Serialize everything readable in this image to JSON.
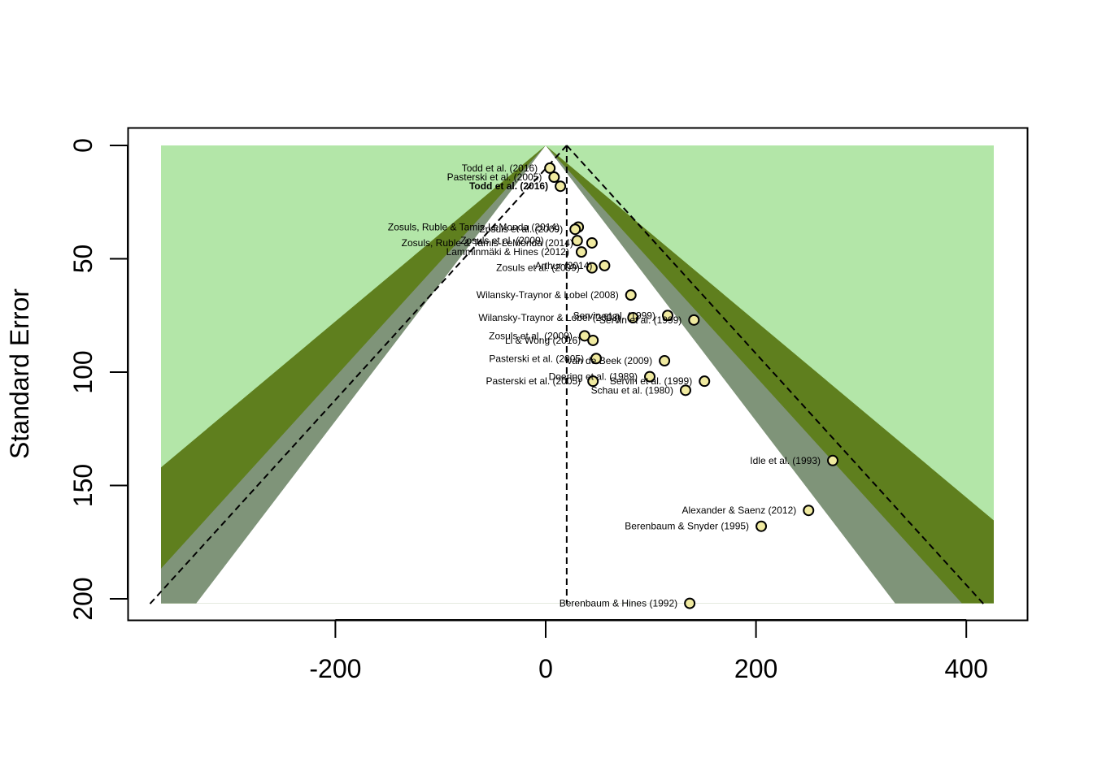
{
  "chart_data": {
    "type": "scatter",
    "subtype": "contour-enhanced funnel plot",
    "xlabel": "",
    "ylabel": "Standard Error",
    "xlim": [
      -395,
      460
    ],
    "ylim": [
      0,
      202
    ],
    "y_reversed": true,
    "x_ticks": [
      -200,
      0,
      200,
      400
    ],
    "x_tick_labels": [
      "-200",
      "0",
      "200",
      "400"
    ],
    "y_ticks": [
      0,
      50,
      100,
      150,
      200
    ],
    "y_tick_labels": [
      "0",
      "50",
      "100",
      "150",
      "200"
    ],
    "grid": false,
    "legend": "none",
    "center_estimate": 20,
    "contour_levels": [
      1.645,
      1.96,
      2.576
    ],
    "colors": {
      "outer_region": "#b3e6a8",
      "p10_band": "#5f7f1e",
      "p05_band": "#7f9479",
      "inner_region": "#ffffff",
      "point_fill": "#f0eaa0",
      "point_stroke": "#000000",
      "lines": "#000000"
    },
    "points": [
      {
        "label": "Todd et al. (2016)",
        "x": 4,
        "y": 10,
        "bold": false,
        "label_dx": 0
      },
      {
        "label": "Pasterski et al. (2005)",
        "x": 8,
        "y": 14,
        "bold": false,
        "label_dx": 0
      },
      {
        "label": "Todd et al. (2016)",
        "x": 14,
        "y": 18,
        "bold": true,
        "label_dx": 0
      },
      {
        "label": "Zosuls, Ruble & Tamis-LeMonda (2014)",
        "x": 31,
        "y": 36,
        "bold": false,
        "label_dx": -8
      },
      {
        "label": "Zosuls et al. (2009)",
        "x": 28,
        "y": 37,
        "bold": false,
        "label_dx": 0
      },
      {
        "label": "Zosuls, Ruble & Tamis-LeMonda (2014)",
        "x": 44,
        "y": 43,
        "bold": false,
        "label_dx": -8
      },
      {
        "label": "Zosuls et al. (2009)",
        "x": 30,
        "y": 42,
        "bold": false,
        "label_dx": -26
      },
      {
        "label": "Lamminmäki & Hines (2012)",
        "x": 34,
        "y": 47,
        "bold": false,
        "label_dx": 0
      },
      {
        "label": "Arthur (2014)",
        "x": 56,
        "y": 53,
        "bold": false,
        "label_dx": 0
      },
      {
        "label": "Zosuls et al. (2009)",
        "x": 44,
        "y": 54,
        "bold": false,
        "label_dx": 0
      },
      {
        "label": "Wilansky-Traynor & Lobel (2008)",
        "x": 81,
        "y": 66,
        "bold": false,
        "label_dx": 0
      },
      {
        "label": "Servin et al. (1999)",
        "x": 116,
        "y": 75,
        "bold": false,
        "label_dx": 0
      },
      {
        "label": "Wilansky-Traynor & Lobel (2008)",
        "x": 83,
        "y": 76,
        "bold": false,
        "label_dx": 0
      },
      {
        "label": "Servin et al. (1999)",
        "x": 141,
        "y": 77,
        "bold": false,
        "label_dx": 0
      },
      {
        "label": "Zosuls et al. (2009)",
        "x": 37,
        "y": 84,
        "bold": false,
        "label_dx": 0
      },
      {
        "label": "Li & Wong (2016)",
        "x": 45,
        "y": 86,
        "bold": false,
        "label_dx": 0
      },
      {
        "label": "van de Beek (2009)",
        "x": 113,
        "y": 95,
        "bold": false,
        "label_dx": 0
      },
      {
        "label": "Pasterski et al. (2005)",
        "x": 48,
        "y": 94,
        "bold": false,
        "label_dx": 0
      },
      {
        "label": "Doering et al. (1989)",
        "x": 99,
        "y": 102,
        "bold": false,
        "label_dx": 0
      },
      {
        "label": "Servin et al. (1999)",
        "x": 151,
        "y": 104,
        "bold": false,
        "label_dx": 0
      },
      {
        "label": "Pasterski et al. (2005)",
        "x": 45,
        "y": 104,
        "bold": false,
        "label_dx": 0
      },
      {
        "label": "Schau et al. (1980)",
        "x": 133,
        "y": 108,
        "bold": false,
        "label_dx": 0
      },
      {
        "label": "Idle et al. (1993)",
        "x": 273,
        "y": 139,
        "bold": false,
        "label_dx": 0
      },
      {
        "label": "Alexander & Saenz (2012)",
        "x": 250,
        "y": 161,
        "bold": false,
        "label_dx": 0
      },
      {
        "label": "Berenbaum & Snyder (1995)",
        "x": 205,
        "y": 168,
        "bold": false,
        "label_dx": 0
      },
      {
        "label": "Berenbaum & Hines (1992)",
        "x": 137,
        "y": 202,
        "bold": false,
        "label_dx": 0
      }
    ]
  }
}
